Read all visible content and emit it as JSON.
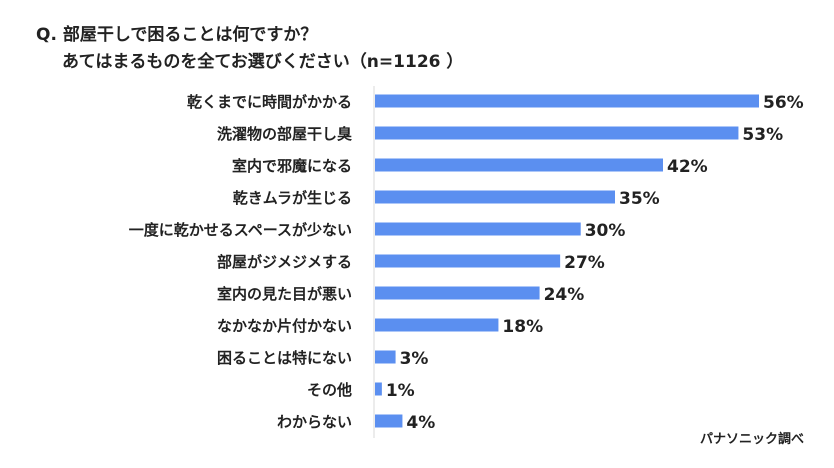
{
  "chart_data": {
    "type": "bar",
    "orientation": "horizontal",
    "title": "Q. 部屋干しで困ることは何ですか？",
    "subtitle": "あてはまるものを全てお選びください（n=1126 ）",
    "categories": [
      "乾くまでに時間がかかる",
      "洗濯物の部屋干し臭",
      "室内で邪魔になる",
      "乾きムラが生じる",
      "一度に乾かせるスペースが少ない",
      "部屋がジメジメする",
      "室内の見た目が悪い",
      "なかなか片付かない",
      "困ることは特にない",
      "その他",
      "わからない"
    ],
    "values": [
      56,
      53,
      42,
      35,
      30,
      27,
      24,
      18,
      3,
      1,
      4
    ],
    "labels": [
      "56%",
      "53%",
      "42%",
      "35%",
      "30%",
      "27%",
      "24%",
      "18%",
      "3%",
      "1%",
      "4%"
    ],
    "unit": "%",
    "xlim": [
      0,
      56
    ],
    "grid": false,
    "bar_color": "#5b8ff0",
    "source": "パナソニック調べ"
  }
}
